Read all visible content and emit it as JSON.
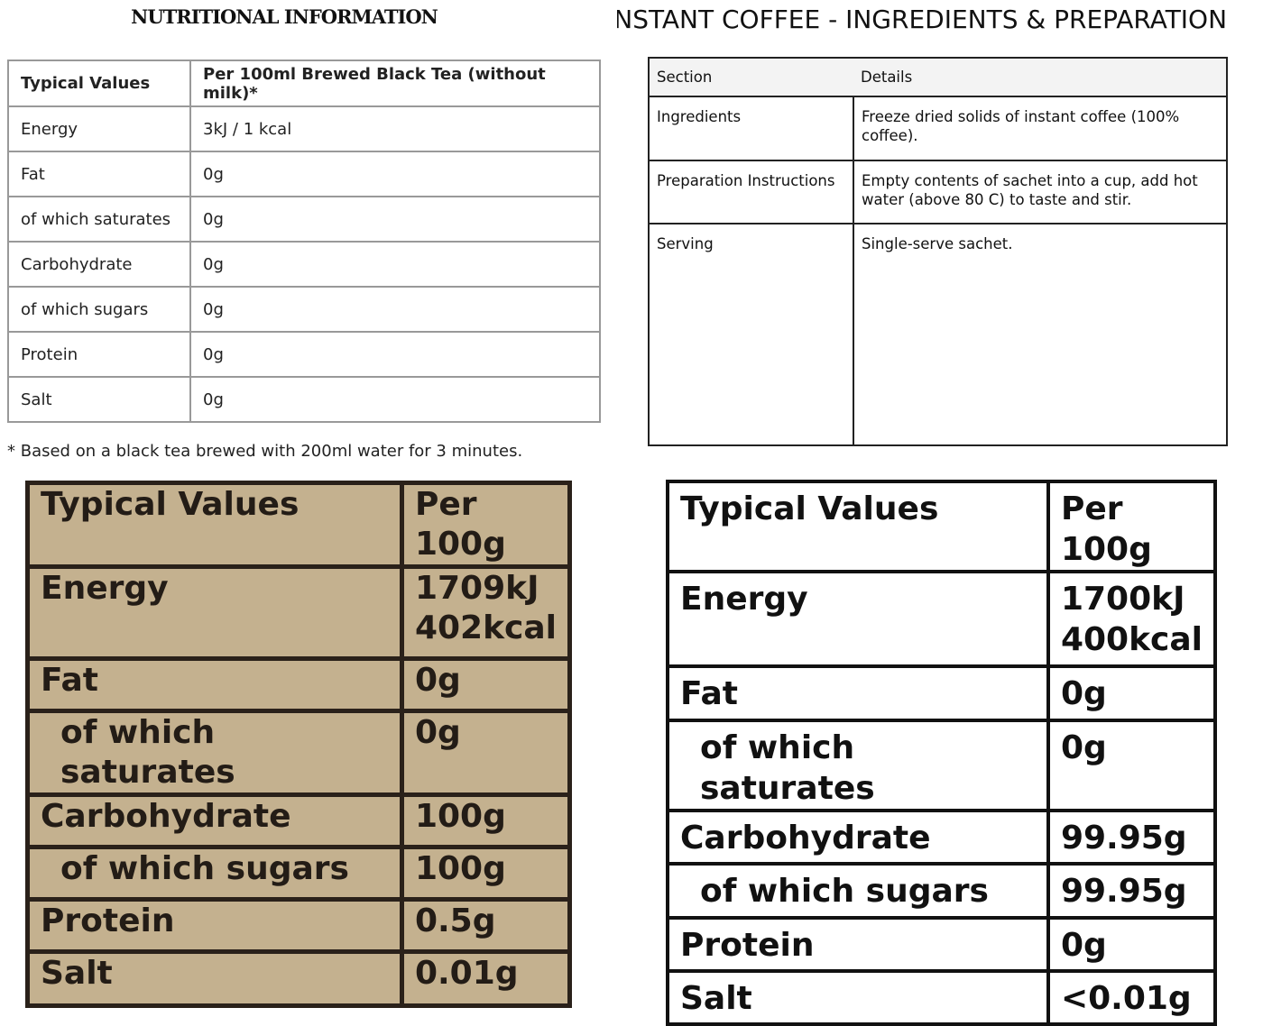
{
  "tea": {
    "title": "NUTRITIONAL INFORMATION",
    "headers": [
      "Typical Values",
      "Per 100ml Brewed Black Tea (without milk)*"
    ],
    "rows": [
      [
        "Energy",
        "3kJ / 1 kcal"
      ],
      [
        "Fat",
        "0g"
      ],
      [
        "of which saturates",
        "0g"
      ],
      [
        "Carbohydrate",
        "0g"
      ],
      [
        "of which sugars",
        "0g"
      ],
      [
        "Protein",
        "0g"
      ],
      [
        "Salt",
        "0g"
      ]
    ],
    "footnote": "* Based on a black tea brewed with 200ml water for 3 minutes."
  },
  "coffee": {
    "title": "INSTANT COFFEE - INGREDIENTS & PREPARATION",
    "headers": [
      "Section",
      "Details"
    ],
    "rows": [
      [
        "Ingredients",
        "Freeze dried solids of instant coffee (100% coffee)."
      ],
      [
        "Preparation Instructions",
        "Empty contents of sachet into a cup, add hot water (above 80 C) to taste and stir."
      ],
      [
        "Serving",
        "Single-serve sachet."
      ]
    ]
  },
  "kraft_label": {
    "headers": [
      "Typical Values",
      "Per 100g"
    ],
    "rows": [
      [
        "Energy",
        "1709kJ\n402kcal"
      ],
      [
        "Fat",
        "0g"
      ],
      [
        "of which saturates",
        "0g"
      ],
      [
        "Carbohydrate",
        "100g"
      ],
      [
        "of which sugars",
        "100g"
      ],
      [
        "Protein",
        "0.5g"
      ],
      [
        "Salt",
        "0.01g"
      ]
    ]
  },
  "white_label": {
    "headers": [
      "Typical Values",
      "Per 100g"
    ],
    "rows": [
      [
        "Energy",
        "1700kJ\n400kcal"
      ],
      [
        "Fat",
        "0g"
      ],
      [
        "of which saturates",
        "0g"
      ],
      [
        "Carbohydrate",
        "99.95g"
      ],
      [
        "of which sugars",
        "99.95g"
      ],
      [
        "Protein",
        "0g"
      ],
      [
        "Salt",
        "<0.01g"
      ]
    ]
  }
}
